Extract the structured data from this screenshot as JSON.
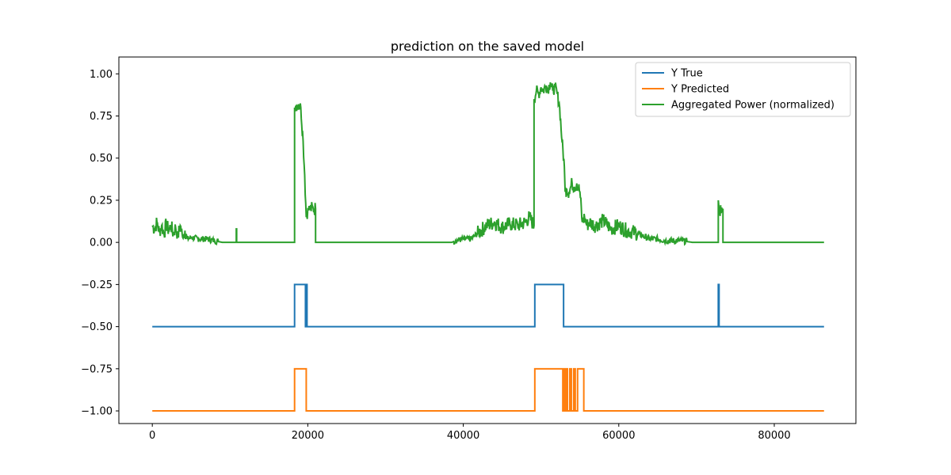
{
  "chart_data": {
    "type": "line",
    "title": "prediction on the saved model",
    "xlabel": "",
    "ylabel": "",
    "xlim": [
      -4300,
      90500
    ],
    "ylim": [
      -1.075,
      1.1
    ],
    "xticks": [
      0,
      20000,
      40000,
      60000,
      80000
    ],
    "xtick_labels": [
      "0",
      "20000",
      "40000",
      "60000",
      "80000"
    ],
    "yticks": [
      1.0,
      0.75,
      0.5,
      0.25,
      0.0,
      -0.25,
      -0.5,
      -0.75,
      -1.0
    ],
    "ytick_labels": [
      "1.00",
      "0.75",
      "0.50",
      "0.25",
      "0.00",
      "−0.25",
      "−0.50",
      "−0.75",
      "−1.00"
    ],
    "grid": false,
    "legend_position": "top-right",
    "series": [
      {
        "name": "Y True",
        "color": "#1f77b4",
        "x": [
          0,
          18300,
          18300,
          19700,
          19700,
          19800,
          19800,
          19900,
          19900,
          20000,
          20000,
          49200,
          49200,
          52900,
          52900,
          53000,
          53000,
          72800,
          72800,
          72900,
          72900,
          86400
        ],
        "y": [
          -0.5,
          -0.5,
          -0.25,
          -0.25,
          -0.5,
          -0.5,
          -0.25,
          -0.25,
          -0.5,
          -0.5,
          -0.5,
          -0.5,
          -0.25,
          -0.25,
          -0.5,
          -0.5,
          -0.5,
          -0.5,
          -0.25,
          -0.25,
          -0.5,
          -0.5
        ]
      },
      {
        "name": "Y Predicted",
        "color": "#ff7f0e",
        "x": [
          0,
          18300,
          18300,
          19800,
          19800,
          49200,
          49200,
          52800,
          52800,
          52900,
          52900,
          53000,
          53000,
          53100,
          53100,
          53200,
          53200,
          53300,
          53300,
          53400,
          53400,
          53700,
          53700,
          53900,
          53900,
          54200,
          54200,
          54400,
          54400,
          54700,
          54700,
          55500,
          55500,
          86400
        ],
        "y": [
          -1,
          -1,
          -0.75,
          -0.75,
          -1,
          -1,
          -0.75,
          -0.75,
          -1,
          -1,
          -0.75,
          -0.75,
          -1,
          -1,
          -0.75,
          -0.75,
          -1,
          -1,
          -0.75,
          -0.75,
          -1,
          -1,
          -0.75,
          -0.75,
          -1,
          -1,
          -0.75,
          -0.75,
          -1,
          -1,
          -0.75,
          -0.75,
          -1,
          -1
        ],
        "z_order": "back"
      },
      {
        "name": "Aggregated Power (normalized)",
        "color": "#2ca02c",
        "noisy": true,
        "x": [
          0,
          300,
          600,
          900,
          1200,
          1500,
          1800,
          2100,
          2400,
          2700,
          3000,
          3300,
          3600,
          3900,
          4200,
          4500,
          5000,
          6000,
          7000,
          8000,
          9000,
          10000,
          10800,
          10800,
          10850,
          10850,
          11000,
          12000,
          14000,
          16000,
          18300,
          18300,
          18500,
          18800,
          19100,
          19400,
          19600,
          19800,
          20000,
          20100,
          20100,
          20300,
          20700,
          21000,
          21000,
          22000,
          25000,
          30000,
          35000,
          38500,
          39000,
          40000,
          41000,
          41500,
          42000,
          43000,
          44000,
          45000,
          46000,
          47000,
          48000,
          48500,
          49100,
          49100,
          49400,
          49700,
          50000,
          50300,
          50600,
          50900,
          51200,
          51500,
          51800,
          52100,
          52400,
          52700,
          53000,
          53100,
          53300,
          53600,
          54000,
          54300,
          54600,
          55000,
          55300,
          55600,
          55900,
          56200,
          57000,
          58000,
          59000,
          60000,
          61000,
          62000,
          63000,
          64000,
          65000,
          66000,
          68000,
          69500,
          70000,
          72000,
          72800,
          72800,
          72900,
          73300,
          73400,
          73400,
          75000,
          80000,
          86400
        ],
        "y": [
          0.1,
          0.08,
          0.12,
          0.06,
          0.1,
          0.05,
          0.11,
          0.07,
          0.1,
          0.05,
          0.09,
          0.04,
          0.1,
          0.03,
          0.07,
          0.02,
          0.03,
          0.02,
          0.02,
          0.01,
          0.0,
          0.0,
          0.0,
          0.08,
          0.08,
          0.0,
          0.0,
          0.0,
          0.0,
          0.0,
          0.0,
          0.8,
          0.81,
          0.82,
          0.8,
          0.6,
          0.4,
          0.15,
          0.2,
          0.2,
          0.19,
          0.2,
          0.2,
          0.2,
          0.0,
          0.0,
          0.0,
          0.0,
          0.0,
          0.0,
          0.01,
          0.02,
          0.02,
          0.04,
          0.06,
          0.1,
          0.12,
          0.09,
          0.11,
          0.1,
          0.12,
          0.15,
          0.1,
          0.85,
          0.9,
          0.88,
          0.92,
          0.9,
          0.93,
          0.91,
          0.95,
          0.9,
          0.92,
          0.88,
          0.8,
          0.6,
          0.45,
          0.3,
          0.32,
          0.3,
          0.35,
          0.33,
          0.35,
          0.3,
          0.12,
          0.15,
          0.1,
          0.12,
          0.1,
          0.13,
          0.08,
          0.1,
          0.07,
          0.06,
          0.04,
          0.02,
          0.02,
          0.01,
          0.01,
          0.0,
          0.0,
          0.0,
          0.0,
          0.25,
          0.2,
          0.19,
          0.2,
          0.0,
          0.0,
          0.0,
          0.0
        ]
      }
    ]
  }
}
